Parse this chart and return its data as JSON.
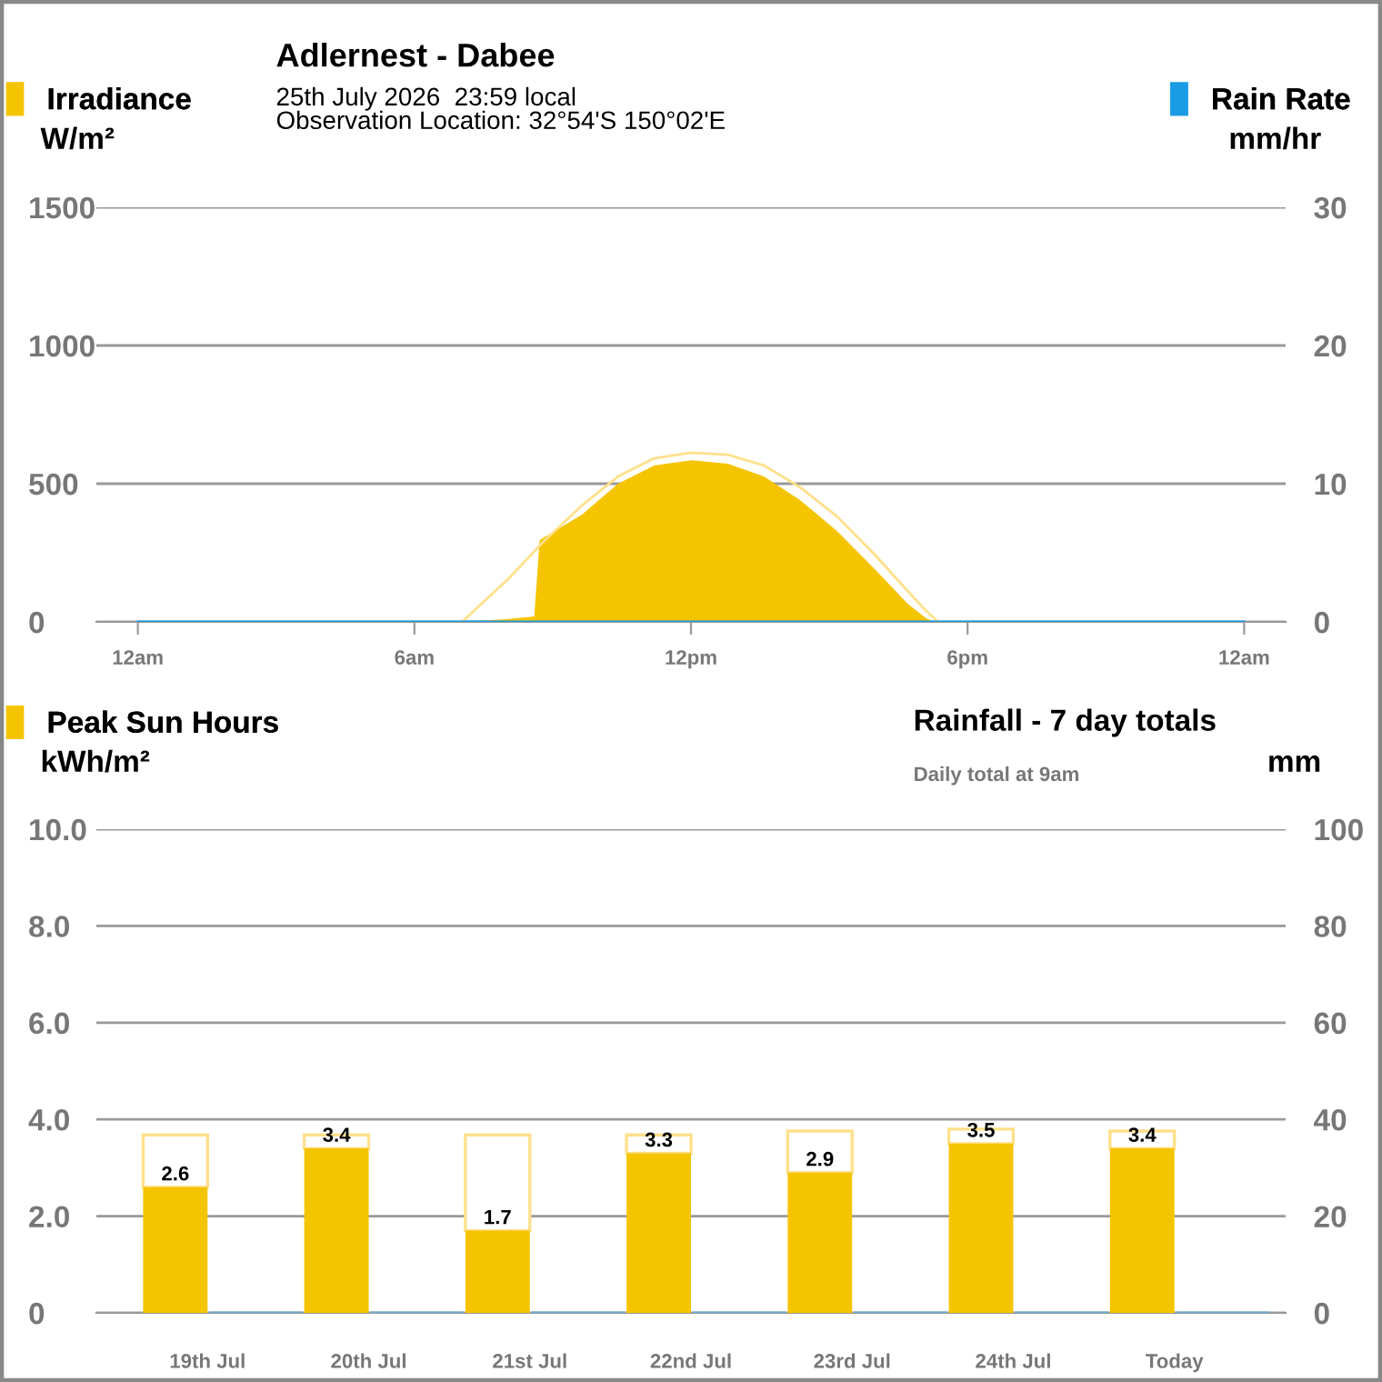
{
  "chart_data": [
    {
      "type": "area",
      "title": "Adlernest - Dabee",
      "subtitle": "25th July 2026  23:59 local\nObservation Location: 32°54'S 150°02'E",
      "ylabel": "W/m²",
      "y2label": "mm/hr",
      "series": [
        {
          "name": "Irradiance",
          "color": "#f5c400",
          "x": [
            "2026-07-25T07:00",
            "2026-07-25T08:00",
            "2026-07-25T08:36",
            "2026-07-25T08:43",
            "2026-07-25T09:38",
            "2026-07-25T10:25",
            "2026-07-25T11:12",
            "2026-07-25T12:00",
            "2026-07-25T12:48",
            "2026-07-25T13:35",
            "2026-07-25T14:22",
            "2026-07-25T15:10",
            "2026-07-25T15:57",
            "2026-07-25T16:42",
            "2026-07-25T17:06",
            "2026-07-25T17:18"
          ],
          "values": [
            0,
            10,
            20,
            296,
            388,
            500,
            566,
            585,
            572,
            526,
            441,
            329,
            197,
            66,
            13,
            0
          ]
        },
        {
          "type": "line",
          "color": "#ffe08a",
          "x": [
            "2026-07-25T07:02",
            "2026-07-25T08:03",
            "2026-07-25T08:50",
            "2026-07-25T09:38",
            "2026-07-25T10:25",
            "2026-07-25T11:12",
            "2026-07-25T12:00",
            "2026-07-25T12:48",
            "2026-07-25T13:35",
            "2026-07-25T14:22",
            "2026-07-25T15:10",
            "2026-07-25T15:57",
            "2026-07-25T16:42",
            "2026-07-25T17:06",
            "2026-07-25T17:22"
          ],
          "values": [
            0,
            158,
            296,
            421,
            526,
            592,
            612,
            605,
            566,
            487,
            382,
            250,
            112,
            40,
            0
          ]
        },
        {
          "name": "Rain Rate",
          "type": "line",
          "axis": "y2",
          "color": "#1a9be6",
          "x": [
            "2026-07-25T00:00",
            "2026-07-26T00:00"
          ],
          "values": [
            0,
            0
          ]
        }
      ],
      "xlim": [
        "2026-07-24T23:06",
        "2026-07-26T00:54"
      ],
      "xticks": [
        {
          "value": "2026-07-25T00:00",
          "label": "12am"
        },
        {
          "value": "2026-07-25T06:00",
          "label": "6am"
        },
        {
          "value": "2026-07-25T12:00",
          "label": "12pm"
        },
        {
          "value": "2026-07-25T18:00",
          "label": "6pm"
        },
        {
          "value": "2026-07-26T00:00",
          "label": "12am"
        }
      ],
      "ylim": [
        0,
        1500
      ],
      "yticks": [
        0,
        500,
        1000,
        1500
      ],
      "y2lim": [
        0,
        30
      ],
      "y2ticks": [
        0,
        10,
        20,
        30
      ],
      "grid": "y",
      "legend": "top"
    },
    {
      "type": "bar",
      "title": "Rainfall - 7 day totals",
      "subtitle": "Daily total at 9am",
      "ylabel": "kWh/m²",
      "y2label": "mm",
      "categories": [
        "19th Jul",
        "20th Jul",
        "21st Jul",
        "22nd Jul",
        "23rd Jul",
        "24th Jul",
        "Today"
      ],
      "series": [
        {
          "name": "Peak Sun Hours",
          "color": "#f5c400",
          "values": [
            2.6,
            3.4,
            1.7,
            3.3,
            2.9,
            3.5,
            3.4
          ],
          "value_labels": [
            "2.6",
            "3.4",
            "1.7",
            "3.3",
            "2.9",
            "3.5",
            "3.4"
          ]
        },
        {
          "color": "#ffe08a",
          "values": [
            1.08,
            0.28,
            1.98,
            0.38,
            0.86,
            0.3,
            0.36
          ]
        },
        {
          "axis": "y2",
          "color": "#6aaed6",
          "values": [
            0,
            0,
            0,
            0,
            0,
            0,
            0
          ]
        }
      ],
      "ylim": [
        0,
        10
      ],
      "yticks": [
        0,
        {
          "value": 2,
          "label": "2.0"
        },
        {
          "value": 4,
          "label": "4.0"
        },
        {
          "value": 6,
          "label": "6.0"
        },
        {
          "value": 8,
          "label": "8.0"
        },
        {
          "value": 10,
          "label": "10.0"
        }
      ],
      "y2lim": [
        0,
        100
      ],
      "y2ticks": [
        0,
        20,
        40,
        60,
        80,
        100
      ],
      "grid": "y",
      "legend": "top",
      "stacked": true
    }
  ]
}
